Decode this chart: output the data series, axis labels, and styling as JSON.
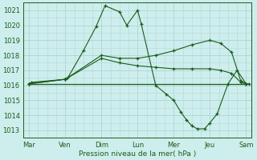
{
  "xlabel": "Pression niveau de la mer( hPa )",
  "background_color": "#ceeeed",
  "grid_color": "#b0d8d8",
  "line_color": "#1a5c1a",
  "ylim": [
    1012.5,
    1021.5
  ],
  "yticks": [
    1013,
    1014,
    1015,
    1016,
    1017,
    1018,
    1019,
    1020,
    1021
  ],
  "day_labels": [
    "Mar",
    "Ven",
    "Dim",
    "Lun",
    "Mer",
    "Jeu",
    "Sam"
  ],
  "day_positions": [
    0,
    1,
    2,
    3,
    4,
    5,
    6
  ],
  "xlim": [
    -0.15,
    6.15
  ],
  "lines": [
    {
      "x": [
        0,
        0.07,
        1.0,
        1.07,
        1.5,
        1.85,
        2.1,
        2.5,
        2.7,
        3.0,
        3.1,
        3.5,
        3.8,
        4.0,
        4.2,
        4.35,
        4.5,
        4.65,
        4.85,
        5.0,
        5.2,
        5.5,
        5.75,
        6.0,
        6.07
      ],
      "y": [
        1016.1,
        1016.2,
        1016.4,
        1016.5,
        1018.3,
        1019.9,
        1021.3,
        1020.9,
        1020.0,
        1021.0,
        1020.1,
        1016.0,
        1015.4,
        1015.0,
        1014.2,
        1013.7,
        1013.3,
        1013.1,
        1013.1,
        1013.5,
        1014.1,
        1016.1,
        1017.0,
        1016.1,
        1016.1
      ],
      "marker": "+"
    },
    {
      "x": [
        0,
        1,
        2,
        2.5,
        3,
        3.5,
        4,
        4.5,
        5.0,
        5.3,
        5.6,
        5.85,
        6.0
      ],
      "y": [
        1016.1,
        1016.4,
        1018.0,
        1017.8,
        1017.8,
        1018.0,
        1018.3,
        1018.7,
        1019.0,
        1018.8,
        1018.2,
        1016.3,
        1016.1
      ],
      "marker": "+"
    },
    {
      "x": [
        0,
        1,
        2,
        2.5,
        3,
        3.5,
        4,
        4.5,
        5.0,
        5.3,
        5.6,
        5.85,
        6.0
      ],
      "y": [
        1016.1,
        1016.4,
        1017.8,
        1017.5,
        1017.3,
        1017.2,
        1017.1,
        1017.1,
        1017.1,
        1017.0,
        1016.8,
        1016.2,
        1016.1
      ],
      "marker": "+"
    },
    {
      "x": [
        0,
        1,
        2,
        3,
        4,
        5,
        6
      ],
      "y": [
        1016.1,
        1016.1,
        1016.1,
        1016.1,
        1016.1,
        1016.1,
        1016.1
      ],
      "marker": null
    }
  ]
}
